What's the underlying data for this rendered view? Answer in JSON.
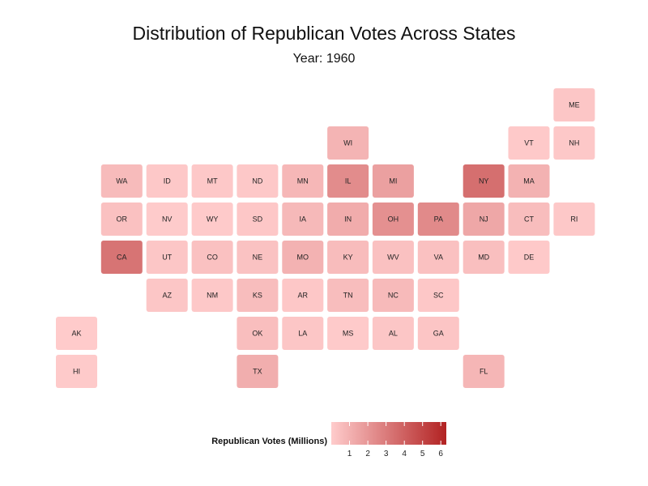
{
  "chart_data": {
    "type": "heatmap",
    "title": "Distribution of Republican Votes Across States",
    "subtitle": "Year: 1960",
    "legend": {
      "title": "Republican Votes (Millions)",
      "ticks": [
        1,
        2,
        3,
        4,
        5,
        6
      ],
      "range": [
        0,
        6.3
      ],
      "color_low": "#ffcccc",
      "color_high": "#b22222",
      "placement": "bottom"
    },
    "states": [
      {
        "abbr": "ME",
        "col": 11,
        "row": 0,
        "value": 0.24
      },
      {
        "abbr": "WI",
        "col": 6,
        "row": 1,
        "value": 0.9
      },
      {
        "abbr": "VT",
        "col": 10,
        "row": 1,
        "value": 0.1
      },
      {
        "abbr": "NH",
        "col": 11,
        "row": 1,
        "value": 0.16
      },
      {
        "abbr": "WA",
        "col": 1,
        "row": 2,
        "value": 0.63
      },
      {
        "abbr": "ID",
        "col": 2,
        "row": 2,
        "value": 0.16
      },
      {
        "abbr": "MT",
        "col": 3,
        "row": 2,
        "value": 0.14
      },
      {
        "abbr": "ND",
        "col": 4,
        "row": 2,
        "value": 0.15
      },
      {
        "abbr": "MN",
        "col": 5,
        "row": 2,
        "value": 0.76
      },
      {
        "abbr": "IL",
        "col": 6,
        "row": 2,
        "value": 2.37
      },
      {
        "abbr": "MI",
        "col": 7,
        "row": 2,
        "value": 1.62
      },
      {
        "abbr": "NY",
        "col": 9,
        "row": 2,
        "value": 3.45
      },
      {
        "abbr": "MA",
        "col": 10,
        "row": 2,
        "value": 0.98
      },
      {
        "abbr": "OR",
        "col": 1,
        "row": 3,
        "value": 0.41
      },
      {
        "abbr": "NV",
        "col": 2,
        "row": 3,
        "value": 0.05
      },
      {
        "abbr": "WY",
        "col": 3,
        "row": 3,
        "value": 0.08
      },
      {
        "abbr": "SD",
        "col": 4,
        "row": 3,
        "value": 0.18
      },
      {
        "abbr": "IA",
        "col": 5,
        "row": 3,
        "value": 0.72
      },
      {
        "abbr": "IN",
        "col": 6,
        "row": 3,
        "value": 1.18
      },
      {
        "abbr": "OH",
        "col": 7,
        "row": 3,
        "value": 2.22
      },
      {
        "abbr": "PA",
        "col": 8,
        "row": 3,
        "value": 2.44
      },
      {
        "abbr": "NJ",
        "col": 9,
        "row": 3,
        "value": 1.36
      },
      {
        "abbr": "CT",
        "col": 10,
        "row": 3,
        "value": 0.57
      },
      {
        "abbr": "RI",
        "col": 11,
        "row": 3,
        "value": 0.15
      },
      {
        "abbr": "CA",
        "col": 1,
        "row": 4,
        "value": 3.26
      },
      {
        "abbr": "UT",
        "col": 2,
        "row": 4,
        "value": 0.21
      },
      {
        "abbr": "CO",
        "col": 3,
        "row": 4,
        "value": 0.4
      },
      {
        "abbr": "NE",
        "col": 4,
        "row": 4,
        "value": 0.38
      },
      {
        "abbr": "MO",
        "col": 5,
        "row": 4,
        "value": 0.96
      },
      {
        "abbr": "KY",
        "col": 6,
        "row": 4,
        "value": 0.6
      },
      {
        "abbr": "WV",
        "col": 7,
        "row": 4,
        "value": 0.4
      },
      {
        "abbr": "VA",
        "col": 8,
        "row": 4,
        "value": 0.4
      },
      {
        "abbr": "MD",
        "col": 9,
        "row": 4,
        "value": 0.49
      },
      {
        "abbr": "DE",
        "col": 10,
        "row": 4,
        "value": 0.1
      },
      {
        "abbr": "AZ",
        "col": 2,
        "row": 5,
        "value": 0.22
      },
      {
        "abbr": "NM",
        "col": 3,
        "row": 5,
        "value": 0.15
      },
      {
        "abbr": "KS",
        "col": 4,
        "row": 5,
        "value": 0.56
      },
      {
        "abbr": "AR",
        "col": 5,
        "row": 5,
        "value": 0.18
      },
      {
        "abbr": "TN",
        "col": 6,
        "row": 5,
        "value": 0.56
      },
      {
        "abbr": "NC",
        "col": 7,
        "row": 5,
        "value": 0.66
      },
      {
        "abbr": "SC",
        "col": 8,
        "row": 5,
        "value": 0.19
      },
      {
        "abbr": "AK",
        "col": 0,
        "row": 6,
        "value": 0.03
      },
      {
        "abbr": "OK",
        "col": 4,
        "row": 6,
        "value": 0.53
      },
      {
        "abbr": "LA",
        "col": 5,
        "row": 6,
        "value": 0.23
      },
      {
        "abbr": "MS",
        "col": 6,
        "row": 6,
        "value": 0.07
      },
      {
        "abbr": "AL",
        "col": 7,
        "row": 6,
        "value": 0.24
      },
      {
        "abbr": "GA",
        "col": 8,
        "row": 6,
        "value": 0.27
      },
      {
        "abbr": "HI",
        "col": 0,
        "row": 7,
        "value": 0.09
      },
      {
        "abbr": "TX",
        "col": 4,
        "row": 7,
        "value": 1.12
      },
      {
        "abbr": "FL",
        "col": 9,
        "row": 7,
        "value": 0.8
      }
    ]
  }
}
